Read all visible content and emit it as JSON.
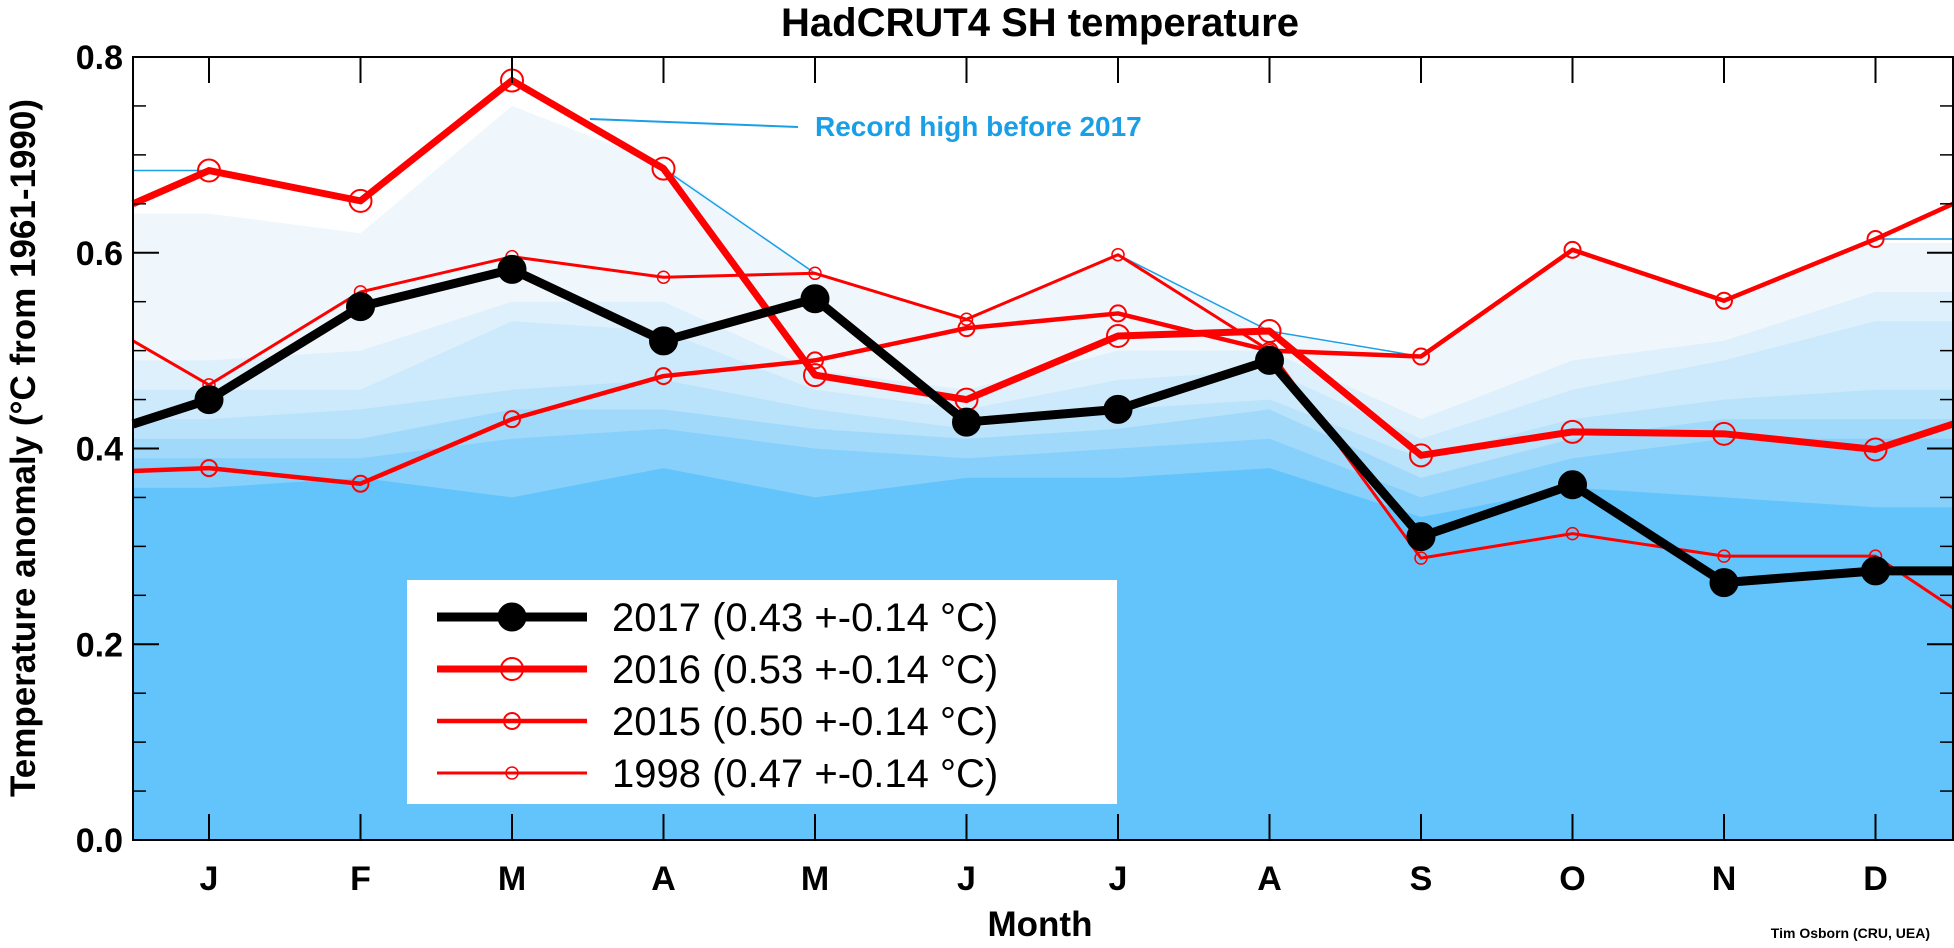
{
  "chart_data": {
    "type": "line",
    "title": "HadCRUT4 SH temperature",
    "xlabel": "Month",
    "ylabel": "Temperature anomaly (°C from 1961-1990)",
    "categories": [
      "J",
      "F",
      "M",
      "A",
      "M",
      "J",
      "J",
      "A",
      "S",
      "O",
      "N",
      "D"
    ],
    "ylim": [
      0.0,
      0.8
    ],
    "yticks": [
      0.0,
      0.2,
      0.4,
      0.6,
      0.8
    ],
    "yticks_minor": [
      0.05,
      0.1,
      0.15,
      0.25,
      0.3,
      0.35,
      0.45,
      0.5,
      0.55,
      0.65,
      0.7,
      0.75
    ],
    "yticks_labels": [
      "0.0",
      "0.2",
      "0.4",
      "0.6",
      "0.8"
    ],
    "grid": false,
    "legend_position": "bottom-left",
    "series": [
      {
        "name": "2017",
        "label": "2017 (0.43 +-0.14 °C)",
        "color": "#000000",
        "style": "thick-filled-marker",
        "values": [
          0.45,
          0.545,
          0.583,
          0.51,
          0.553,
          0.427,
          0.44,
          0.49,
          0.31,
          0.363,
          0.263,
          0.275
        ],
        "edge_left": 0.425
      },
      {
        "name": "2016",
        "label": "2016 (0.53 +-0.14 °C)",
        "color": "#ff0000",
        "style": "thick-large-open-marker",
        "values": [
          0.684,
          0.653,
          0.776,
          0.686,
          0.475,
          0.45,
          0.515,
          0.52,
          0.393,
          0.417,
          0.415,
          0.399
        ],
        "edge_left": 0.65,
        "edge_right": 0.425
      },
      {
        "name": "2015",
        "label": "2015 (0.50 +-0.14 °C)",
        "color": "#ff0000",
        "style": "medium-open-marker",
        "values": [
          0.38,
          0.364,
          0.43,
          0.474,
          0.49,
          0.523,
          0.538,
          0.5,
          0.494,
          0.603,
          0.551,
          0.614
        ],
        "edge_left": 0.377,
        "edge_right": 0.65
      },
      {
        "name": "1998",
        "label": "1998 (0.47 +-0.14 °C)",
        "color": "#ff0000",
        "style": "thin-small-open-marker",
        "values": [
          0.465,
          0.56,
          0.596,
          0.575,
          0.579,
          0.532,
          0.598,
          0.5,
          0.288,
          0.313,
          0.29,
          0.29
        ],
        "edge_left": 0.51,
        "edge_right": 0.237
      }
    ],
    "record_high_before_2017": {
      "color": "#1a9fe6",
      "values": [
        0.684,
        0.653,
        0.776,
        0.686,
        0.579,
        0.532,
        0.598,
        0.52,
        0.494,
        0.603,
        0.551,
        0.614
      ]
    },
    "uncertainty_bands": {
      "colors": [
        "#eff7fd",
        "#def0fb",
        "#cceafb",
        "#b9e2fb",
        "#a1d9fb",
        "#87d0fb",
        "#63c4fb"
      ],
      "upper": [
        [
          0.64,
          0.62,
          0.75,
          0.69,
          0.58,
          0.53,
          0.6,
          0.52,
          0.49,
          0.6,
          0.55,
          0.61
        ],
        [
          0.49,
          0.5,
          0.55,
          0.55,
          0.48,
          0.46,
          0.5,
          0.5,
          0.43,
          0.49,
          0.51,
          0.56
        ],
        [
          0.46,
          0.46,
          0.53,
          0.52,
          0.46,
          0.44,
          0.47,
          0.48,
          0.41,
          0.46,
          0.49,
          0.53
        ],
        [
          0.43,
          0.44,
          0.46,
          0.47,
          0.44,
          0.42,
          0.44,
          0.45,
          0.39,
          0.43,
          0.45,
          0.46
        ],
        [
          0.41,
          0.41,
          0.44,
          0.44,
          0.42,
          0.41,
          0.42,
          0.44,
          0.37,
          0.41,
          0.43,
          0.43
        ],
        [
          0.39,
          0.39,
          0.41,
          0.42,
          0.4,
          0.39,
          0.4,
          0.41,
          0.35,
          0.39,
          0.41,
          0.41
        ],
        [
          0.36,
          0.37,
          0.35,
          0.38,
          0.35,
          0.37,
          0.37,
          0.38,
          0.33,
          0.36,
          0.35,
          0.34
        ]
      ]
    },
    "annotations": [
      {
        "text": "Record high before 2017",
        "color": "#1a9fe6"
      }
    ],
    "credit": "Tim Osborn (CRU, UEA)"
  }
}
